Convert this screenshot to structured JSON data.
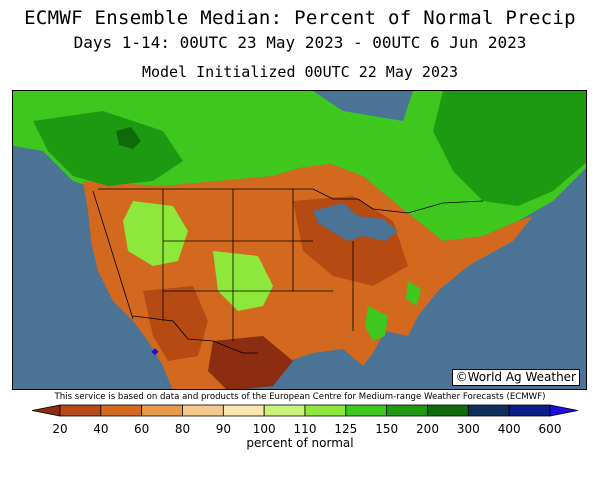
{
  "header": {
    "title": "ECMWF Ensemble Median: Percent of Normal Precip",
    "period": "Days 1-14: 00UTC 23 May 2023 - 00UTC 6 Jun 2023",
    "init": "Model Initialized 00UTC 22 May 2023"
  },
  "map": {
    "watermark": "©World Ag Weather",
    "ocean_color": "#4a7396",
    "region": "North America"
  },
  "credit": "This service is based on data and products of the European Centre for Medium-range Weather Forecasts (ECMWF)",
  "legend": {
    "units": "percent of normal",
    "ticks": [
      "20",
      "40",
      "60",
      "80",
      "90",
      "100",
      "110",
      "125",
      "150",
      "200",
      "300",
      "400",
      "600"
    ],
    "colors": [
      "#8c2d12",
      "#b64a13",
      "#d2691e",
      "#e69a4a",
      "#f5c98c",
      "#fbe6b0",
      "#c8f27a",
      "#8ee83c",
      "#3ec81e",
      "#1e9a12",
      "#0f6a0a",
      "#102e5c",
      "#0e1c8a",
      "#1c10e0"
    ]
  }
}
